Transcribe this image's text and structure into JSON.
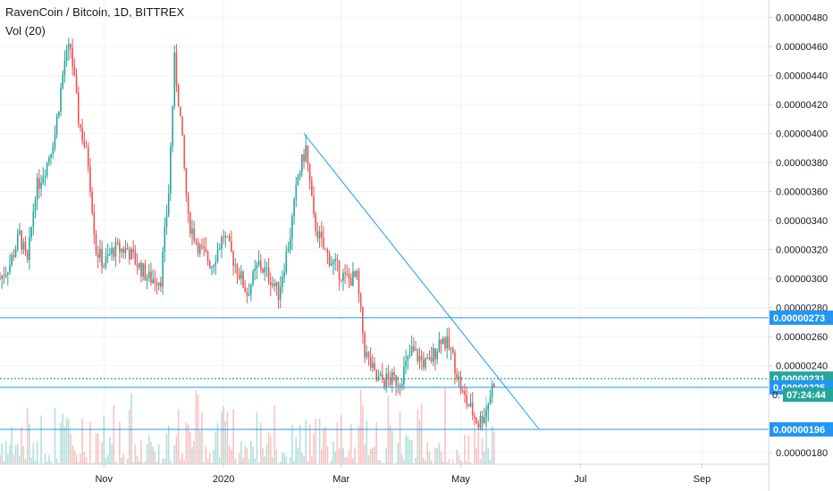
{
  "header": {
    "title": "RavenCoin / Bitcoin, 1D, BITTREX",
    "volume_label": "Vol (20)"
  },
  "colors": {
    "up": "#26a69a",
    "down": "#ef5350",
    "line": "#2196f3",
    "grid": "#f0f3fa",
    "axis": "#d1d4dc"
  },
  "chart_data": {
    "type": "candlestick",
    "y_axis": {
      "min": 1.72e-06,
      "max": 4.92e-06,
      "ticks": [
        "0.00000480",
        "0.00000460",
        "0.00000440",
        "0.00000420",
        "0.00000400",
        "0.00000380",
        "0.00000360",
        "0.00000340",
        "0.00000320",
        "0.00000300",
        "0.00000280",
        "0.00000260",
        "0.00000240",
        "0.00000180"
      ],
      "tick_values": [
        4.8e-06,
        4.6e-06,
        4.4e-06,
        4.2e-06,
        4e-06,
        3.8e-06,
        3.6e-06,
        3.4e-06,
        3.2e-06,
        3e-06,
        2.8e-06,
        2.6e-06,
        2.4e-06,
        1.8e-06
      ]
    },
    "x_axis": {
      "labels": [
        {
          "label": "Nov",
          "day": 53
        },
        {
          "label": "2020",
          "day": 114
        },
        {
          "label": "Mar",
          "day": 174
        },
        {
          "label": "May",
          "day": 235
        },
        {
          "label": "Jul",
          "day": 296
        },
        {
          "label": "Sep",
          "day": 358
        }
      ],
      "first_day": 0,
      "last_day": 392
    },
    "price_path": [
      [
        0,
        3e-06
      ],
      [
        5,
        3.1e-06
      ],
      [
        10,
        3.3e-06
      ],
      [
        14,
        3.1e-06
      ],
      [
        18,
        3.6e-06
      ],
      [
        24,
        3.8e-06
      ],
      [
        28,
        4e-06
      ],
      [
        33,
        4.5e-06
      ],
      [
        36,
        4.6e-06
      ],
      [
        40,
        4.1e-06
      ],
      [
        45,
        3.8e-06
      ],
      [
        49,
        3.2e-06
      ],
      [
        53,
        3.1e-06
      ],
      [
        58,
        3.2e-06
      ],
      [
        65,
        3.2e-06
      ],
      [
        70,
        3.1e-06
      ],
      [
        76,
        3e-06
      ],
      [
        82,
        3e-06
      ],
      [
        86,
        3.6e-06
      ],
      [
        89,
        4.5e-06
      ],
      [
        92,
        4.1e-06
      ],
      [
        96,
        3.4e-06
      ],
      [
        102,
        3.2e-06
      ],
      [
        108,
        3.1e-06
      ],
      [
        114,
        3.3e-06
      ],
      [
        120,
        3.1e-06
      ],
      [
        126,
        2.9e-06
      ],
      [
        132,
        3.1e-06
      ],
      [
        138,
        3e-06
      ],
      [
        142,
        2.9e-06
      ],
      [
        148,
        3.3e-06
      ],
      [
        152,
        3.7e-06
      ],
      [
        156,
        3.9e-06
      ],
      [
        160,
        3.4e-06
      ],
      [
        165,
        3.2e-06
      ],
      [
        170,
        3.1e-06
      ],
      [
        176,
        3e-06
      ],
      [
        182,
        3e-06
      ],
      [
        186,
        2.5e-06
      ],
      [
        192,
        2.3e-06
      ],
      [
        198,
        2.3e-06
      ],
      [
        204,
        2.3e-06
      ],
      [
        210,
        2.5e-06
      ],
      [
        218,
        2.4e-06
      ],
      [
        222,
        2.5e-06
      ],
      [
        225,
        2.6e-06
      ],
      [
        230,
        2.5e-06
      ],
      [
        236,
        2.2e-06
      ],
      [
        240,
        2.1e-06
      ],
      [
        244,
        2e-06
      ],
      [
        248,
        2.1e-06
      ],
      [
        252,
        2.3e-06
      ]
    ],
    "volume_scale_max": 1.0,
    "levels": [
      {
        "name": "resistance-273",
        "value": 2.73e-06,
        "label": "0.00000273"
      },
      {
        "name": "current-231",
        "value": 2.31e-06,
        "label": "0.00000231",
        "dotted": true
      },
      {
        "name": "support-225",
        "value": 2.25e-06,
        "label": "0.00000225"
      },
      {
        "name": "support-196",
        "value": 1.96e-06,
        "label": "0.00000196"
      }
    ],
    "countdown": {
      "prefix": "0.",
      "time": "07:24:44"
    },
    "trendline": {
      "start": {
        "day": 155,
        "value": 4e-06
      },
      "end": {
        "day": 275,
        "value": 1.96e-06
      }
    }
  }
}
